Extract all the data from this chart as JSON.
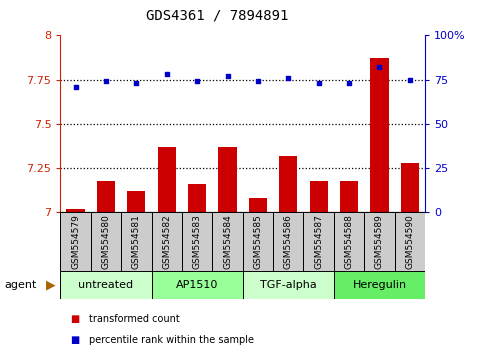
{
  "title": "GDS4361 / 7894891",
  "samples": [
    "GSM554579",
    "GSM554580",
    "GSM554581",
    "GSM554582",
    "GSM554583",
    "GSM554584",
    "GSM554585",
    "GSM554586",
    "GSM554587",
    "GSM554588",
    "GSM554589",
    "GSM554590"
  ],
  "red_values": [
    7.02,
    7.18,
    7.12,
    7.37,
    7.16,
    7.37,
    7.08,
    7.32,
    7.18,
    7.18,
    7.87,
    7.28
  ],
  "blue_values": [
    71,
    74,
    73,
    78,
    74,
    77,
    74,
    76,
    73,
    73,
    82,
    75
  ],
  "ylim_left": [
    7.0,
    8.0
  ],
  "ylim_right": [
    0,
    100
  ],
  "yticks_left": [
    7.0,
    7.25,
    7.5,
    7.75,
    8.0
  ],
  "yticks_right": [
    0,
    25,
    50,
    75,
    100
  ],
  "ytick_labels_left": [
    "7",
    "7.25",
    "7.5",
    "7.75",
    "8"
  ],
  "ytick_labels_right": [
    "0",
    "25",
    "50",
    "75",
    "100%"
  ],
  "hlines": [
    7.25,
    7.5,
    7.75
  ],
  "agents": [
    {
      "label": "untreated",
      "start": 0,
      "end": 3,
      "color": "#ccffcc"
    },
    {
      "label": "AP1510",
      "start": 3,
      "end": 6,
      "color": "#99ff99"
    },
    {
      "label": "TGF-alpha",
      "start": 6,
      "end": 9,
      "color": "#ccffcc"
    },
    {
      "label": "Heregulin",
      "start": 9,
      "end": 12,
      "color": "#66ee66"
    }
  ],
  "bar_color": "#cc0000",
  "dot_color": "#0000cc",
  "bg_color": "#ffffff",
  "sample_box_color": "#cccccc",
  "agent_label_fontsize": 8,
  "sample_fontsize": 6.5,
  "title_fontsize": 10,
  "legend_items": [
    {
      "color": "#cc0000",
      "label": "transformed count"
    },
    {
      "color": "#0000cc",
      "label": "percentile rank within the sample"
    }
  ]
}
